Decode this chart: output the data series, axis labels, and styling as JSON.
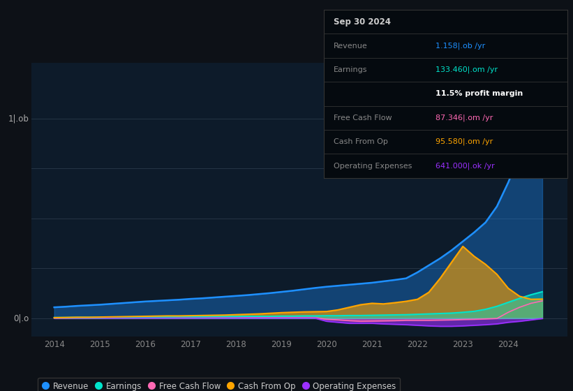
{
  "bg_color": "#0d1117",
  "chart_bg": "#0d1b2a",
  "grid_color": "#2a3a4a",
  "years": [
    2014.0,
    2014.25,
    2014.5,
    2014.75,
    2015.0,
    2015.25,
    2015.5,
    2015.75,
    2016.0,
    2016.25,
    2016.5,
    2016.75,
    2017.0,
    2017.25,
    2017.5,
    2017.75,
    2018.0,
    2018.25,
    2018.5,
    2018.75,
    2019.0,
    2019.25,
    2019.5,
    2019.75,
    2020.0,
    2020.25,
    2020.5,
    2020.75,
    2021.0,
    2021.25,
    2021.5,
    2021.75,
    2022.0,
    2022.25,
    2022.5,
    2022.75,
    2023.0,
    2023.25,
    2023.5,
    2023.75,
    2024.0,
    2024.25,
    2024.5,
    2024.75
  ],
  "revenue": [
    0.055,
    0.058,
    0.062,
    0.065,
    0.068,
    0.072,
    0.076,
    0.08,
    0.084,
    0.087,
    0.09,
    0.093,
    0.097,
    0.1,
    0.104,
    0.108,
    0.112,
    0.116,
    0.121,
    0.126,
    0.132,
    0.138,
    0.145,
    0.152,
    0.158,
    0.163,
    0.168,
    0.173,
    0.178,
    0.185,
    0.192,
    0.2,
    0.23,
    0.265,
    0.3,
    0.34,
    0.385,
    0.43,
    0.48,
    0.56,
    0.68,
    0.82,
    0.98,
    1.158
  ],
  "earnings": [
    0.004,
    0.004,
    0.005,
    0.005,
    0.005,
    0.006,
    0.006,
    0.006,
    0.007,
    0.007,
    0.007,
    0.008,
    0.008,
    0.008,
    0.009,
    0.009,
    0.009,
    0.01,
    0.01,
    0.01,
    0.011,
    0.011,
    0.012,
    0.012,
    0.013,
    0.013,
    0.014,
    0.014,
    0.015,
    0.016,
    0.017,
    0.018,
    0.02,
    0.022,
    0.024,
    0.026,
    0.03,
    0.035,
    0.045,
    0.06,
    0.08,
    0.1,
    0.118,
    0.133
  ],
  "free_cash_flow": [
    0.001,
    0.001,
    0.002,
    0.002,
    0.002,
    0.002,
    0.003,
    0.003,
    0.003,
    0.003,
    0.003,
    0.003,
    0.003,
    0.003,
    0.003,
    0.003,
    0.003,
    0.003,
    0.003,
    0.003,
    0.003,
    0.003,
    0.003,
    0.003,
    -0.005,
    -0.008,
    -0.012,
    -0.015,
    -0.014,
    -0.013,
    -0.012,
    -0.01,
    -0.01,
    -0.01,
    -0.009,
    -0.008,
    -0.006,
    -0.005,
    -0.003,
    -0.001,
    0.03,
    0.055,
    0.075,
    0.087
  ],
  "cash_from_op": [
    0.003,
    0.004,
    0.005,
    0.005,
    0.006,
    0.007,
    0.008,
    0.009,
    0.01,
    0.011,
    0.012,
    0.012,
    0.013,
    0.014,
    0.015,
    0.016,
    0.018,
    0.02,
    0.022,
    0.025,
    0.028,
    0.03,
    0.032,
    0.033,
    0.034,
    0.042,
    0.055,
    0.068,
    0.075,
    0.072,
    0.078,
    0.085,
    0.095,
    0.13,
    0.2,
    0.28,
    0.36,
    0.31,
    0.27,
    0.22,
    0.15,
    0.11,
    0.095,
    0.096
  ],
  "operating_expenses": [
    0.001,
    0.001,
    0.001,
    0.001,
    0.001,
    0.001,
    0.001,
    0.001,
    0.001,
    0.001,
    0.001,
    0.001,
    0.001,
    0.001,
    0.001,
    0.001,
    0.001,
    0.001,
    0.001,
    0.001,
    0.001,
    0.001,
    0.001,
    0.001,
    -0.015,
    -0.02,
    -0.025,
    -0.025,
    -0.025,
    -0.028,
    -0.03,
    -0.032,
    -0.035,
    -0.038,
    -0.04,
    -0.04,
    -0.038,
    -0.035,
    -0.032,
    -0.028,
    -0.02,
    -0.015,
    -0.008,
    -0.001
  ],
  "revenue_color": "#1e90ff",
  "earnings_color": "#00e5cc",
  "free_cash_flow_color": "#ff69b4",
  "cash_from_op_color": "#ffa500",
  "operating_expenses_color": "#9b30ff",
  "table_header": "Sep 30 2024",
  "table_revenue_label": "Revenue",
  "table_revenue_value": "1.158|.ob /yr",
  "table_revenue_color": "#1e90ff",
  "table_earnings_label": "Earnings",
  "table_earnings_value": "133.460|.om /yr",
  "table_earnings_color": "#00e5cc",
  "table_margin": "11.5% profit margin",
  "table_fcf_label": "Free Cash Flow",
  "table_fcf_value": "87.346|.om /yr",
  "table_fcf_color": "#ff69b4",
  "table_cashop_label": "Cash From Op",
  "table_cashop_value": "95.580|.om /yr",
  "table_cashop_color": "#ffa500",
  "table_opex_label": "Operating Expenses",
  "table_opex_value": "641.000|.ok /yr",
  "table_opex_color": "#9b30ff",
  "ylabel_top": "1|.ob",
  "ylabel_bottom": "0|.o",
  "ylim": [
    -0.09,
    1.28
  ],
  "xlim": [
    2013.5,
    2025.3
  ],
  "xticks": [
    2014,
    2015,
    2016,
    2017,
    2018,
    2019,
    2020,
    2021,
    2022,
    2023,
    2024
  ],
  "legend_labels": [
    "Revenue",
    "Earnings",
    "Free Cash Flow",
    "Cash From Op",
    "Operating Expenses"
  ]
}
